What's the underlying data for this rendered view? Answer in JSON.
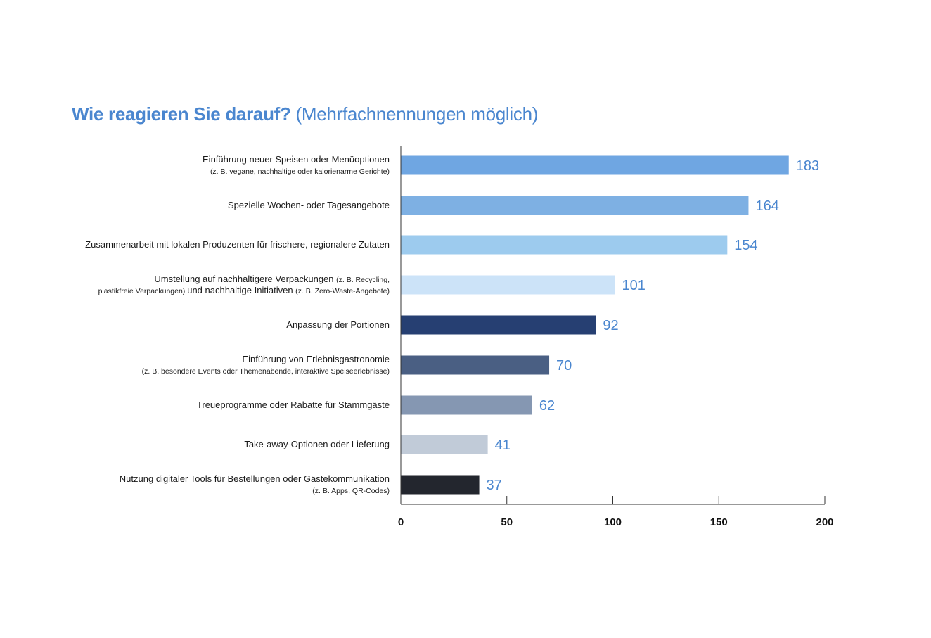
{
  "chart_data": {
    "type": "bar",
    "orientation": "horizontal",
    "title": "Wie reagieren Sie darauf?",
    "subtitle": "(Mehrfachnennungen möglich)",
    "categories": [
      {
        "lines": [
          [
            {
              "text": "Einführung neuer Speisen oder Menüoptionen",
              "small": false
            }
          ],
          [
            {
              "text": "(z. B. vegane, nachhaltige oder kalorienarme Gerichte)",
              "small": true
            }
          ]
        ]
      },
      {
        "lines": [
          [
            {
              "text": "Spezielle Wochen- oder Tagesangebote",
              "small": false
            }
          ]
        ]
      },
      {
        "lines": [
          [
            {
              "text": "Zusammenarbeit mit lokalen Produzenten für frischere, regionalere Zutaten",
              "small": false
            }
          ]
        ]
      },
      {
        "lines": [
          [
            {
              "text": "Umstellung auf nachhaltigere Verpackungen ",
              "small": false
            },
            {
              "text": "(z. B. Recycling,",
              "small": true
            }
          ],
          [
            {
              "text": "plastikfreie Verpackungen) ",
              "small": true
            },
            {
              "text": "und nachhaltige Initiativen ",
              "small": false
            },
            {
              "text": "(z. B. Zero-Waste-Angebote)",
              "small": true
            }
          ]
        ]
      },
      {
        "lines": [
          [
            {
              "text": "Anpassung der Portionen",
              "small": false
            }
          ]
        ]
      },
      {
        "lines": [
          [
            {
              "text": "Einführung von Erlebnisgastronomie",
              "small": false
            }
          ],
          [
            {
              "text": "(z. B. besondere Events oder Themenabende, interaktive Speiseerlebnisse)",
              "small": true
            }
          ]
        ]
      },
      {
        "lines": [
          [
            {
              "text": "Treueprogramme oder Rabatte für Stammgäste",
              "small": false
            }
          ]
        ]
      },
      {
        "lines": [
          [
            {
              "text": "Take-away-Optionen oder Lieferung",
              "small": false
            }
          ]
        ]
      },
      {
        "lines": [
          [
            {
              "text": "Nutzung digitaler Tools für Bestellungen oder Gästekommunikation",
              "small": false
            }
          ],
          [
            {
              "text": "(z. B. Apps, QR-Codes)",
              "small": true
            }
          ]
        ]
      }
    ],
    "values": [
      183,
      164,
      154,
      101,
      92,
      70,
      62,
      41,
      37
    ],
    "bar_colors": [
      "#6fa6e2",
      "#7eb0e3",
      "#9dcbee",
      "#cce3f8",
      "#263f72",
      "#4a5f83",
      "#8597b2",
      "#c1cbd8",
      "#23262e"
    ],
    "xlim": [
      0,
      200
    ],
    "xticks": [
      0,
      50,
      100,
      150,
      200
    ],
    "grid": false,
    "legend": "none",
    "value_label_color": "#4a86cf",
    "title_color": "#4a86cf"
  }
}
